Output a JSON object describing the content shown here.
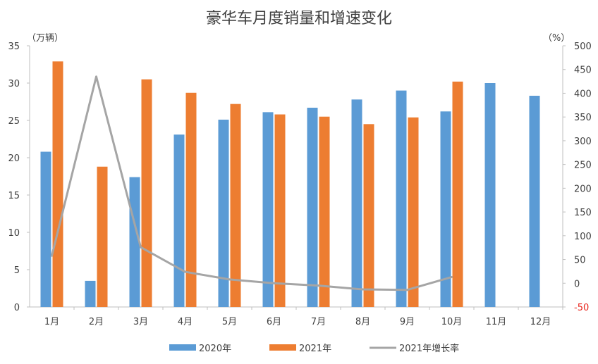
{
  "chart_data": {
    "type": "bar",
    "title": "豪华车月度销量和增速变化",
    "y_unit_left": "（万辆）",
    "y_unit_right": "（%）",
    "categories": [
      "1月",
      "2月",
      "3月",
      "4月",
      "5月",
      "6月",
      "7月",
      "8月",
      "9月",
      "10月",
      "11月",
      "12月"
    ],
    "series": [
      {
        "name": "2020年",
        "type": "bar",
        "axis": "left",
        "color": "#5b9bd5",
        "values": [
          20.8,
          3.5,
          17.4,
          23.1,
          25.1,
          26.1,
          26.7,
          27.8,
          29.0,
          26.2,
          30.0,
          28.3
        ]
      },
      {
        "name": "2021年",
        "type": "bar",
        "axis": "left",
        "color": "#ed7d31",
        "values": [
          32.9,
          18.8,
          30.5,
          28.7,
          27.2,
          25.8,
          25.5,
          24.5,
          25.4,
          30.2,
          null,
          null
        ]
      },
      {
        "name": "2021年增长率",
        "type": "line",
        "axis": "right",
        "color": "#a5a5a5",
        "values": [
          58,
          435,
          76,
          24,
          8,
          0,
          -5,
          -13,
          -14,
          13,
          null,
          null
        ]
      }
    ],
    "ylim_left": [
      0,
      35
    ],
    "yticks_left": [
      "0",
      "5",
      "10",
      "15",
      "20",
      "25",
      "30",
      "35"
    ],
    "ylim_right": [
      -50,
      500
    ],
    "yticks_right": [
      "-50",
      "0",
      "50",
      "100",
      "150",
      "200",
      "250",
      "300",
      "350",
      "400",
      "450",
      "500"
    ],
    "negative_tick_color": "#e8241b",
    "grid": false,
    "legend_position": "bottom"
  }
}
